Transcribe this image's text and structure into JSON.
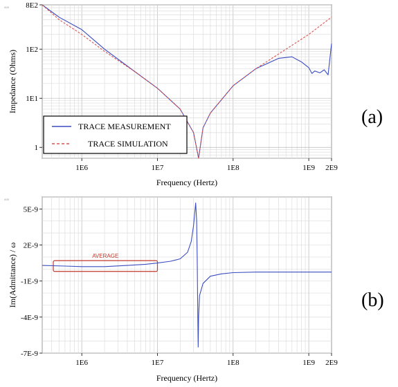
{
  "chart_data": [
    {
      "id": "a",
      "type": "line",
      "panel_label": "(a)",
      "xlabel": "Frequency (Hertz)",
      "ylabel": "Impedance (Ohms)",
      "xscale": "log",
      "yscale": "log",
      "xlim": [
        300000,
        2000000000
      ],
      "ylim": [
        0.6,
        800
      ],
      "x_ticks": [
        {
          "value": 1000000,
          "label": "1E6"
        },
        {
          "value": 10000000,
          "label": "1E7"
        },
        {
          "value": 100000000,
          "label": "1E8"
        },
        {
          "value": 1000000000,
          "label": "1E9"
        },
        {
          "value": 2000000000,
          "label": "2E9"
        }
      ],
      "y_ticks": [
        {
          "value": 1,
          "label": "1"
        },
        {
          "value": 10,
          "label": "1E1"
        },
        {
          "value": 100,
          "label": "1E2"
        },
        {
          "value": 800,
          "label": "8E2"
        }
      ],
      "corner_mark": "A00",
      "grid": true,
      "legend": "bottom-left",
      "series": [
        {
          "name": "TRACE MEASUREMENT",
          "color": "#3b4cc0",
          "dash": "solid",
          "x": [
            300000,
            500000,
            1000000,
            2000000,
            5000000,
            10000000,
            20000000,
            30000000,
            35000000,
            40000000,
            50000000,
            100000000,
            200000000,
            400000000,
            600000000,
            800000000,
            1000000000,
            1100000000,
            1200000000,
            1400000000,
            1600000000,
            1800000000,
            2000000000
          ],
          "y": [
            800,
            450,
            250,
            100,
            35,
            16,
            6,
            2,
            0.6,
            2.5,
            5,
            18,
            40,
            65,
            70,
            55,
            42,
            32,
            36,
            33,
            38,
            30,
            130
          ]
        },
        {
          "name": "TRACE SIMULATION",
          "color": "#d9534f",
          "dash": "dashed",
          "x": [
            300000,
            500000,
            1000000,
            2000000,
            5000000,
            10000000,
            20000000,
            30000000,
            35000000,
            40000000,
            50000000,
            100000000,
            200000000,
            500000000,
            1000000000,
            2000000000
          ],
          "y": [
            800,
            400,
            200,
            90,
            35,
            16,
            6,
            2,
            0.6,
            2.5,
            5,
            18,
            40,
            100,
            200,
            450
          ]
        }
      ]
    },
    {
      "id": "b",
      "type": "line",
      "panel_label": "(b)",
      "xlabel": "Frequency (Hertz)",
      "ylabel": "Im(Admittance) / ω",
      "xscale": "log",
      "yscale": "linear",
      "xlim": [
        300000,
        2000000000
      ],
      "ylim": [
        -7e-09,
        6e-09
      ],
      "x_ticks": [
        {
          "value": 1000000,
          "label": "1E6"
        },
        {
          "value": 10000000,
          "label": "1E7"
        },
        {
          "value": 100000000,
          "label": "1E8"
        },
        {
          "value": 1000000000,
          "label": "1E9"
        },
        {
          "value": 2000000000,
          "label": "2E9"
        }
      ],
      "y_ticks": [
        {
          "value": 5e-09,
          "label": "5E-9"
        },
        {
          "value": 2e-09,
          "label": "2E-9"
        },
        {
          "value": -1e-09,
          "label": "-1E-9"
        },
        {
          "value": -4e-09,
          "label": "-4E-9"
        },
        {
          "value": -7e-09,
          "label": "-7E-9"
        }
      ],
      "corner_mark": "A00",
      "grid": true,
      "annotation": {
        "label": "AVERAGE",
        "x_range": [
          300000,
          10000000
        ],
        "y_range": [
          -2e-10,
          7e-10
        ]
      },
      "series": [
        {
          "name": "",
          "color": "#3b4cc0",
          "dash": "solid",
          "x": [
            300000,
            600000,
            1000000,
            2000000,
            4000000,
            7000000,
            10000000,
            15000000,
            20000000,
            25000000,
            28000000,
            30000000,
            32000000,
            33000000,
            33500000,
            34000000,
            34500000,
            35000000,
            36000000,
            40000000,
            50000000,
            70000000,
            100000000,
            200000000,
            500000000,
            1000000000,
            2000000000
          ],
          "y": [
            3e-10,
            2.5e-10,
            2e-10,
            2e-10,
            3e-10,
            4e-10,
            5e-10,
            6.5e-10,
            8.5e-10,
            1.4e-09,
            2.3e-09,
            3.6e-09,
            5.5e-09,
            4e-09,
            1e-09,
            -3e-09,
            -6.5e-09,
            -4e-09,
            -2.2e-09,
            -1.2e-09,
            -6e-10,
            -4e-10,
            -3e-10,
            -2.5e-10,
            -2.5e-10,
            -2.5e-10,
            -2.5e-10
          ]
        }
      ]
    }
  ]
}
